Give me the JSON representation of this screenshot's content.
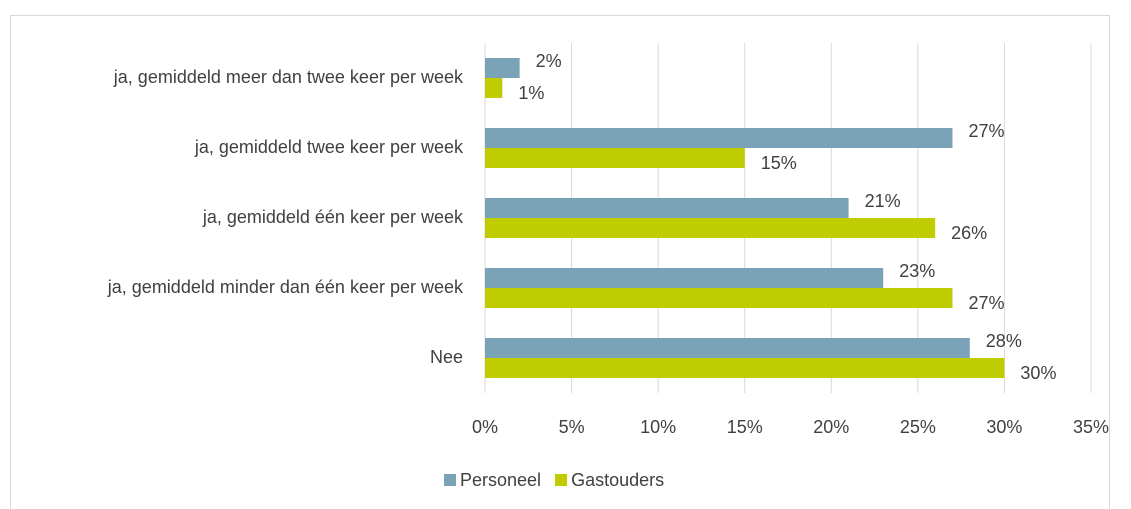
{
  "chart_data": {
    "type": "hbar",
    "categories": [
      "ja, gemiddeld meer dan twee keer per week",
      "ja, gemiddeld twee keer per week",
      "ja, gemiddeld één keer per week",
      "ja, gemiddeld minder dan één keer per week",
      "Nee"
    ],
    "series": [
      {
        "name": "Personeel",
        "color": "#7ba3b7",
        "values": [
          2,
          27,
          21,
          23,
          28
        ],
        "value_labels": [
          "2%",
          "27%",
          "21%",
          "23%",
          "28%"
        ]
      },
      {
        "name": "Gastouders",
        "color": "#bfcc00",
        "values": [
          1,
          15,
          26,
          27,
          30
        ],
        "value_labels": [
          "1%",
          "15%",
          "26%",
          "27%",
          "30%"
        ]
      }
    ],
    "xlim": [
      0,
      35
    ],
    "xticks": [
      {
        "value": 0,
        "label": "0%"
      },
      {
        "value": 5,
        "label": "5%"
      },
      {
        "value": 10,
        "label": "10%"
      },
      {
        "value": 15,
        "label": "15%"
      },
      {
        "value": 20,
        "label": "20%"
      },
      {
        "value": 25,
        "label": "25%"
      },
      {
        "value": 30,
        "label": "30%"
      },
      {
        "value": 35,
        "label": "35%"
      }
    ],
    "grid": true,
    "legend": "bottom"
  }
}
